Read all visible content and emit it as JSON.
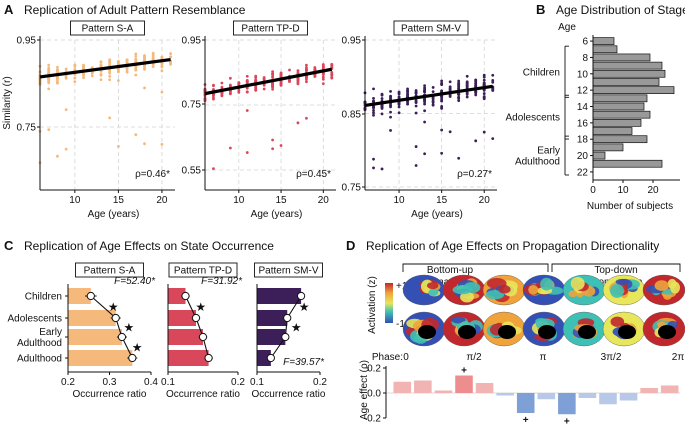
{
  "panels": {
    "A": {
      "letter": "A",
      "title": "Replication of Adult Pattern Resemblance"
    },
    "B": {
      "letter": "B",
      "title": "Age Distribution of Stages"
    },
    "C": {
      "letter": "C",
      "title": "Replication of Age Effects on State Occurrence"
    },
    "D": {
      "letter": "D",
      "title": "Replication of Age Effects on Propagation Directionality"
    }
  },
  "colors": {
    "sa": "#f6b97c",
    "tpd": "#d9485a",
    "smv": "#3c1f58",
    "stage_bar": "#999999",
    "effect_pos": "#f2b3b3",
    "effect_neg": "#b7c8e8",
    "effect_pos_sig": "#ee8d8d",
    "effect_neg_sig": "#7fa0d6"
  },
  "chart_data": [
    {
      "id": "A-SA",
      "type": "scatter",
      "title": "Pattern S-A",
      "xlabel": "Age (years)",
      "ylabel": "Similarity (r)",
      "xlim": [
        6,
        21.5
      ],
      "ylim": [
        0.6,
        0.95
      ],
      "xticks": [
        "10",
        "15",
        "20"
      ],
      "yticks": [
        "0.95",
        "0.75"
      ],
      "fit": {
        "x": [
          6,
          21
        ],
        "y": [
          0.865,
          0.905
        ]
      },
      "stat": "ρ=0.46*",
      "n_points": 300
    },
    {
      "id": "A-TPD",
      "type": "scatter",
      "title": "Pattern TP-D",
      "xlabel": "Age (years)",
      "ylabel": "",
      "xlim": [
        6,
        21.5
      ],
      "ylim": [
        0.5,
        0.95
      ],
      "xticks": [
        "10",
        "15",
        "20"
      ],
      "yticks": [
        "0.95",
        "0.75",
        "0.55"
      ],
      "fit": {
        "x": [
          6,
          21
        ],
        "y": [
          0.785,
          0.86
        ]
      },
      "stat": "ρ=0.45*",
      "n_points": 300
    },
    {
      "id": "A-SMV",
      "type": "scatter",
      "title": "Pattern SM-V",
      "xlabel": "Age (years)",
      "ylabel": "",
      "xlim": [
        6,
        21.5
      ],
      "ylim": [
        0.75,
        0.95
      ],
      "xticks": [
        "10",
        "15",
        "20"
      ],
      "yticks": [
        "0.95",
        "0.85",
        "0.75"
      ],
      "fit": {
        "x": [
          6,
          21
        ],
        "y": [
          0.861,
          0.887
        ]
      },
      "stat": "ρ=0.27*",
      "n_points": 300
    },
    {
      "id": "B",
      "type": "bar",
      "orientation": "horizontal",
      "title": "Age Distribution of Stages",
      "xlabel": "Number of subjects",
      "ylabel": "Age",
      "categories": [
        6,
        7,
        8,
        9,
        10,
        11,
        12,
        13,
        14,
        15,
        16,
        17,
        18,
        19,
        20,
        21,
        22
      ],
      "values": [
        7,
        8,
        19,
        23,
        24,
        22,
        27,
        18,
        17,
        19,
        16,
        13,
        18,
        10,
        4,
        23,
        0
      ],
      "xlim": [
        0,
        29
      ],
      "xticks": [
        "0",
        "10",
        "20"
      ],
      "yticks": [
        "6",
        "8",
        "10",
        "12",
        "14",
        "16",
        "18",
        "20",
        "22"
      ],
      "stages": [
        "Children",
        "Adolescents",
        "Early\nAdulthood"
      ]
    },
    {
      "id": "C-SA",
      "type": "bar",
      "orientation": "horizontal",
      "title": "Pattern S-A",
      "xlabel": "Occurrence ratio",
      "categories": [
        "Children",
        "Adolescents",
        "Early\nAdulthood",
        "Adulthood"
      ],
      "values": [
        0.255,
        0.315,
        0.33,
        0.355
      ],
      "errors": [
        0.014,
        0.012,
        0.012,
        0.012
      ],
      "xlim": [
        0.2,
        0.4
      ],
      "xticks": [
        "0.2",
        "0.3",
        "0.4"
      ],
      "stat": "F=52.40*",
      "sig_marks": 3
    },
    {
      "id": "C-TPD",
      "type": "bar",
      "orientation": "horizontal",
      "title": "Pattern TP-D",
      "xlabel": "Occurrence ratio",
      "categories": [
        "Children",
        "Adolescents",
        "Early\nAdulthood",
        "Adulthood"
      ],
      "values": [
        0.125,
        0.14,
        0.15,
        0.158
      ],
      "errors": [
        0.006,
        0.006,
        0.006,
        0.006
      ],
      "xlim": [
        0.1,
        0.2
      ],
      "xticks": [
        "0.1",
        "0.2"
      ],
      "stat": "F=31.92*",
      "sig_marks": 1
    },
    {
      "id": "C-SMV",
      "type": "bar",
      "orientation": "horizontal",
      "title": "Pattern SM-V",
      "xlabel": "Occurrence ratio",
      "categories": [
        "Children",
        "Adolescents",
        "Early\nAdulthood",
        "Adulthood"
      ],
      "values": [
        0.17,
        0.148,
        0.145,
        0.122
      ],
      "errors": [
        0.006,
        0.006,
        0.006,
        0.006
      ],
      "xlim": [
        0.1,
        0.2
      ],
      "xticks": [
        "0.1",
        "0.2"
      ],
      "stat": "F=39.57*",
      "sig_marks": 2
    },
    {
      "id": "D-effect",
      "type": "bar",
      "title": "Age effect",
      "ylabel": "Age effect (ρ)",
      "xlabel": "Phase",
      "phase_ticks": [
        "Phase:",
        "0",
        "π/2",
        "π",
        "3π/2",
        "2π"
      ],
      "values": [
        0.09,
        0.1,
        0.02,
        0.14,
        0.08,
        -0.02,
        -0.16,
        -0.05,
        -0.17,
        -0.04,
        -0.09,
        -0.06,
        0.04,
        0.06
      ],
      "significant": [
        false,
        false,
        false,
        true,
        false,
        false,
        true,
        false,
        true,
        false,
        false,
        false,
        false,
        false
      ],
      "ylim": [
        -0.2,
        0.2
      ],
      "yticks": [
        "0.2",
        "0.0",
        "-0.2"
      ],
      "propagation_labels": [
        "Bottom-up\npropagation",
        "Top-down\npropagation"
      ],
      "colorbar": {
        "label": "Activation (z)",
        "max": "+1.5",
        "min": "-1.5"
      }
    }
  ]
}
